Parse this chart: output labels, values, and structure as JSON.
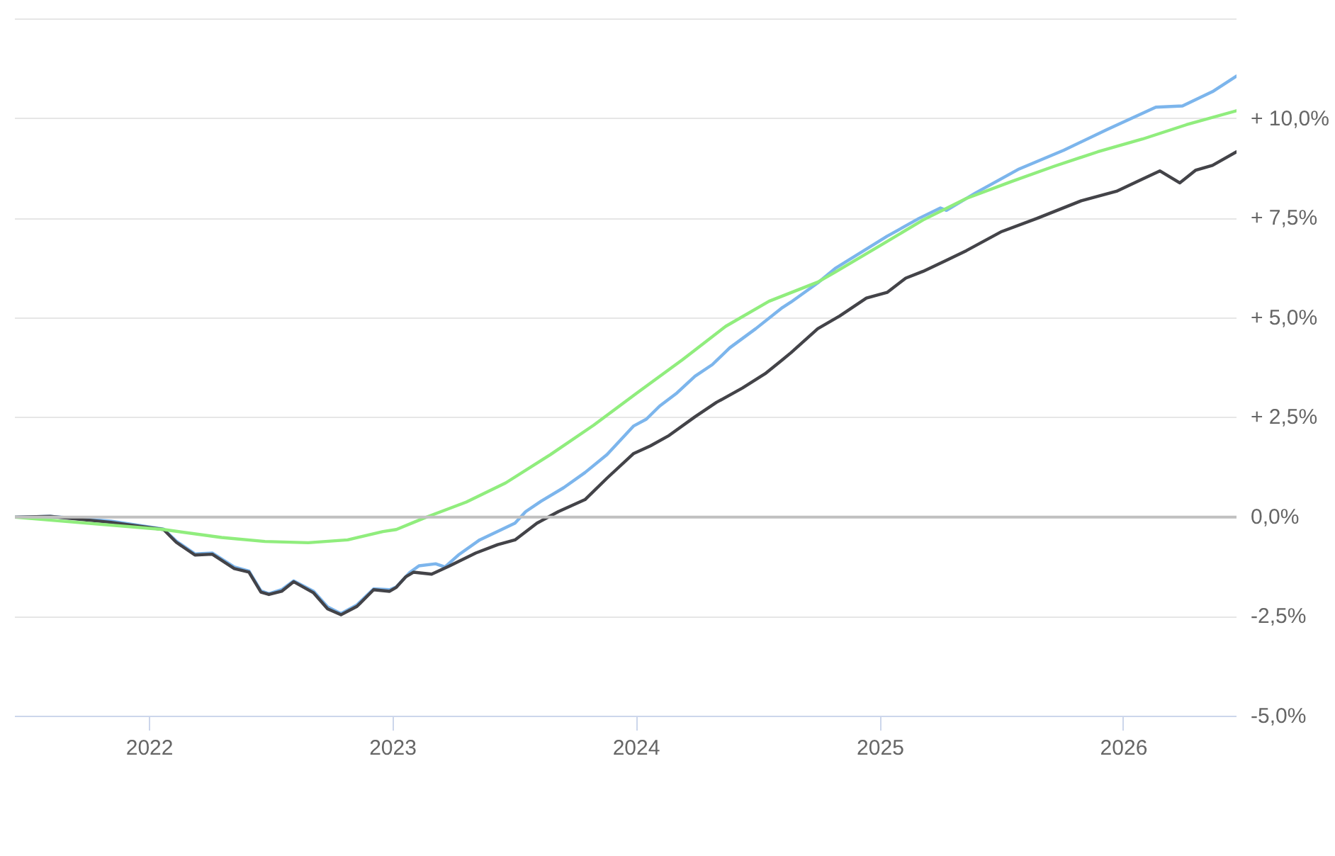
{
  "chart_data": {
    "type": "line",
    "xlim": [
      "2021-06-13",
      "2026-06-19"
    ],
    "xticks": [
      {
        "value": "2022-01-01",
        "label": "2022"
      },
      {
        "value": "2023-01-01",
        "label": "2023"
      },
      {
        "value": "2024-01-01",
        "label": "2024"
      },
      {
        "value": "2025-01-01",
        "label": "2025"
      },
      {
        "value": "2026-01-01",
        "label": "2026"
      }
    ],
    "ylim": [
      -5,
      12.5
    ],
    "yticks": [
      {
        "value": -5,
        "label": "-5,0%"
      },
      {
        "value": -2.5,
        "label": "-2,5%"
      },
      {
        "value": 0,
        "label": "0,0%"
      },
      {
        "value": 2.5,
        "label": "+ 2,5%"
      },
      {
        "value": 5,
        "label": "+ 5,0%"
      },
      {
        "value": 7.5,
        "label": "+ 7,5%"
      },
      {
        "value": 10,
        "label": "+ 10,0%"
      },
      {
        "value": 12.5,
        "label": null
      }
    ],
    "grid": "y",
    "ref_lines": [
      {
        "axis": "y",
        "value": 0,
        "color": "#c0c0c0"
      }
    ],
    "series": [
      {
        "color": "#7cb5ec",
        "x": [
          "2021-06-13",
          "2021-08-05",
          "2021-11-04",
          "2022-01-22",
          "2022-02-10",
          "2022-03-10",
          "2022-04-05",
          "2022-05-08",
          "2022-05-30",
          "2022-06-17",
          "2022-06-29",
          "2022-07-18",
          "2022-08-05",
          "2022-09-04",
          "2022-09-25",
          "2022-10-15",
          "2022-11-08",
          "2022-12-03",
          "2022-12-27",
          "2023-01-06",
          "2023-01-26",
          "2023-02-09",
          "2023-03-06",
          "2023-03-20",
          "2023-04-09",
          "2023-05-11",
          "2023-06-13",
          "2023-07-03",
          "2023-07-19",
          "2023-08-11",
          "2023-09-14",
          "2023-10-16",
          "2023-11-18",
          "2023-12-08",
          "2023-12-28",
          "2024-01-16",
          "2024-02-05",
          "2024-03-02",
          "2024-03-29",
          "2024-04-24",
          "2024-05-20",
          "2024-06-28",
          "2024-08-07",
          "2024-08-20",
          "2024-09-29",
          "2024-10-25",
          "2025-01-11",
          "2025-02-28",
          "2025-04-01",
          "2025-04-10",
          "2025-05-24",
          "2025-07-28",
          "2025-10-03",
          "2025-12-07",
          "2026-02-18",
          "2026-03-30",
          "2026-05-14",
          "2026-06-19"
        ],
        "values": [
          0,
          0.02,
          -0.1,
          -0.3,
          -0.6,
          -0.92,
          -0.9,
          -1.25,
          -1.35,
          -1.85,
          -1.92,
          -1.82,
          -1.6,
          -1.86,
          -2.25,
          -2.42,
          -2.2,
          -1.8,
          -1.82,
          -1.75,
          -1.39,
          -1.22,
          -1.17,
          -1.25,
          -0.95,
          -0.57,
          -0.31,
          -0.15,
          0.14,
          0.4,
          0.74,
          1.12,
          1.57,
          1.93,
          2.29,
          2.46,
          2.79,
          3.12,
          3.54,
          3.83,
          4.25,
          4.73,
          5.26,
          5.4,
          5.88,
          6.24,
          7.05,
          7.5,
          7.76,
          7.7,
          8.14,
          8.74,
          9.21,
          9.73,
          10.29,
          10.32,
          10.68,
          11.07
        ]
      },
      {
        "color": "#434348",
        "x": [
          "2021-06-13",
          "2021-08-05",
          "2021-11-04",
          "2022-01-22",
          "2022-02-10",
          "2022-03-10",
          "2022-04-05",
          "2022-05-08",
          "2022-05-30",
          "2022-06-17",
          "2022-06-29",
          "2022-07-18",
          "2022-08-05",
          "2022-09-04",
          "2022-09-25",
          "2022-10-15",
          "2022-11-08",
          "2022-12-03",
          "2022-12-27",
          "2023-01-06",
          "2023-01-20",
          "2023-02-01",
          "2023-02-28",
          "2023-03-26",
          "2023-05-05",
          "2023-06-07",
          "2023-07-03",
          "2023-08-05",
          "2023-09-06",
          "2023-10-16",
          "2023-11-18",
          "2023-12-28",
          "2024-01-22",
          "2024-02-19",
          "2024-03-29",
          "2024-04-30",
          "2024-06-08",
          "2024-07-12",
          "2024-08-07",
          "2024-08-20",
          "2024-09-29",
          "2024-11-01",
          "2024-12-11",
          "2025-01-11",
          "2025-02-08",
          "2025-03-06",
          "2025-04-08",
          "2025-05-10",
          "2025-07-02",
          "2025-08-24",
          "2025-10-29",
          "2025-12-21",
          "2026-02-24",
          "2026-03-26",
          "2026-04-19",
          "2026-05-14",
          "2026-06-19"
        ],
        "values": [
          0,
          0.02,
          -0.13,
          -0.31,
          -0.63,
          -0.95,
          -0.93,
          -1.29,
          -1.38,
          -1.88,
          -1.94,
          -1.86,
          -1.62,
          -1.9,
          -2.3,
          -2.45,
          -2.24,
          -1.82,
          -1.86,
          -1.76,
          -1.5,
          -1.38,
          -1.43,
          -1.23,
          -0.9,
          -0.69,
          -0.57,
          -0.15,
          0.14,
          0.44,
          0.98,
          1.6,
          1.79,
          2.05,
          2.52,
          2.88,
          3.24,
          3.6,
          3.95,
          4.13,
          4.73,
          5.05,
          5.5,
          5.64,
          6.0,
          6.17,
          6.43,
          6.69,
          7.17,
          7.5,
          7.94,
          8.18,
          8.69,
          8.39,
          8.71,
          8.83,
          9.17
        ]
      },
      {
        "color": "#90ed7d",
        "x": [
          "2021-06-13",
          "2022-01-22",
          "2022-04-19",
          "2022-06-23",
          "2022-08-27",
          "2022-10-25",
          "2022-12-17",
          "2023-01-06",
          "2023-02-14",
          "2023-02-28",
          "2023-04-21",
          "2023-06-19",
          "2023-08-25",
          "2023-10-29",
          "2024-01-02",
          "2024-03-10",
          "2024-05-14",
          "2024-07-18",
          "2024-09-29",
          "2024-10-25",
          "2024-12-31",
          "2025-03-06",
          "2025-05-10",
          "2025-07-16",
          "2025-09-19",
          "2025-11-23",
          "2026-01-29",
          "2026-04-05",
          "2026-06-19"
        ],
        "values": [
          0,
          -0.31,
          -0.51,
          -0.61,
          -0.64,
          -0.57,
          -0.36,
          -0.31,
          -0.04,
          0.05,
          0.38,
          0.86,
          1.57,
          2.31,
          3.12,
          3.95,
          4.79,
          5.42,
          5.9,
          6.15,
          6.81,
          7.46,
          8.0,
          8.42,
          8.81,
          9.17,
          9.49,
          9.85,
          10.2
        ]
      }
    ]
  }
}
